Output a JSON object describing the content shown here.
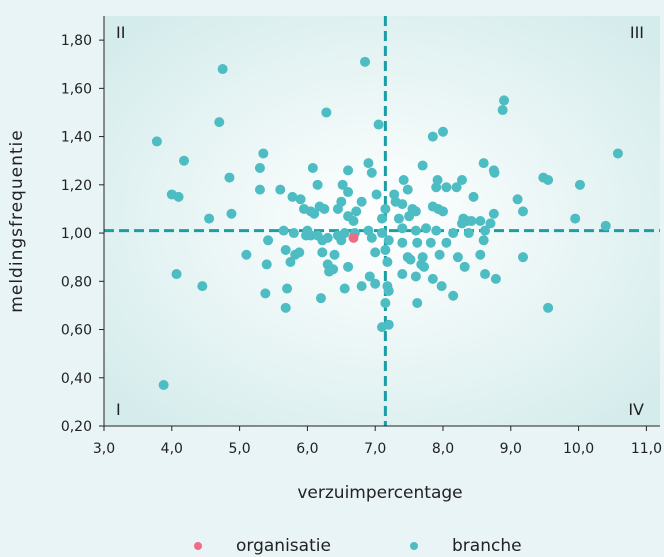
{
  "chart_data": {
    "type": "scatter",
    "xlabel": "verzuimpercentage",
    "ylabel": "meldingsfrequentie",
    "xlim": [
      3.0,
      11.0
    ],
    "ylim": [
      0.2,
      1.9
    ],
    "xticks": [
      "3,0",
      "4,0",
      "5,0",
      "6,0",
      "7,0",
      "8,0",
      "9,0",
      "10,0",
      "11,0"
    ],
    "yticks": [
      "0,20",
      "0,40",
      "0,60",
      "0,80",
      "1,00",
      "1,20",
      "1,40",
      "1,60",
      "1,80"
    ],
    "reference_lines": {
      "x": 7.15,
      "y": 1.01
    },
    "quadrant_labels": {
      "top_left": "II",
      "top_right": "III",
      "bottom_left": "I",
      "bottom_right": "IV"
    },
    "grid": false,
    "legend_position": "bottom",
    "series": [
      {
        "name": "organisatie",
        "color": "#f06b84",
        "points": [
          [
            6.68,
            0.98
          ]
        ]
      },
      {
        "name": "branche",
        "color": "#4dbcc3",
        "points": [
          [
            4.75,
            1.68
          ],
          [
            6.85,
            1.71
          ],
          [
            6.28,
            1.5
          ],
          [
            7.05,
            1.45
          ],
          [
            4.7,
            1.46
          ],
          [
            3.78,
            1.38
          ],
          [
            8.0,
            1.42
          ],
          [
            7.85,
            1.4
          ],
          [
            8.9,
            1.55
          ],
          [
            8.88,
            1.51
          ],
          [
            10.58,
            1.33
          ],
          [
            5.35,
            1.33
          ],
          [
            4.18,
            1.3
          ],
          [
            5.3,
            1.27
          ],
          [
            6.9,
            1.29
          ],
          [
            7.7,
            1.28
          ],
          [
            8.6,
            1.29
          ],
          [
            8.75,
            1.26
          ],
          [
            8.76,
            1.25
          ],
          [
            9.48,
            1.23
          ],
          [
            9.55,
            1.22
          ],
          [
            10.02,
            1.2
          ],
          [
            4.85,
            1.23
          ],
          [
            6.6,
            1.26
          ],
          [
            6.08,
            1.27
          ],
          [
            6.95,
            1.25
          ],
          [
            7.92,
            1.22
          ],
          [
            7.42,
            1.22
          ],
          [
            8.28,
            1.22
          ],
          [
            7.48,
            1.18
          ],
          [
            7.4,
            1.12
          ],
          [
            7.9,
            1.19
          ],
          [
            8.05,
            1.19
          ],
          [
            8.2,
            1.19
          ],
          [
            5.3,
            1.18
          ],
          [
            5.6,
            1.18
          ],
          [
            5.78,
            1.15
          ],
          [
            5.9,
            1.14
          ],
          [
            6.15,
            1.2
          ],
          [
            6.52,
            1.2
          ],
          [
            6.6,
            1.17
          ],
          [
            6.5,
            1.13
          ],
          [
            6.8,
            1.13
          ],
          [
            7.02,
            1.16
          ],
          [
            7.28,
            1.16
          ],
          [
            7.3,
            1.13
          ],
          [
            8.45,
            1.15
          ],
          [
            9.1,
            1.14
          ],
          [
            9.18,
            1.09
          ],
          [
            4.0,
            1.16
          ],
          [
            4.1,
            1.15
          ],
          [
            4.88,
            1.08
          ],
          [
            4.55,
            1.06
          ],
          [
            5.95,
            1.1
          ],
          [
            6.05,
            1.09
          ],
          [
            6.18,
            1.11
          ],
          [
            6.25,
            1.1
          ],
          [
            6.1,
            1.08
          ],
          [
            6.45,
            1.1
          ],
          [
            6.6,
            1.07
          ],
          [
            6.72,
            1.09
          ],
          [
            6.68,
            1.05
          ],
          [
            7.15,
            1.1
          ],
          [
            7.55,
            1.1
          ],
          [
            7.6,
            1.09
          ],
          [
            7.85,
            1.11
          ],
          [
            7.93,
            1.1
          ],
          [
            8.0,
            1.09
          ],
          [
            7.1,
            1.06
          ],
          [
            7.35,
            1.06
          ],
          [
            7.5,
            1.07
          ],
          [
            8.3,
            1.06
          ],
          [
            8.36,
            1.05
          ],
          [
            8.28,
            1.04
          ],
          [
            8.42,
            1.05
          ],
          [
            8.55,
            1.05
          ],
          [
            8.75,
            1.08
          ],
          [
            8.7,
            1.04
          ],
          [
            9.95,
            1.06
          ],
          [
            10.4,
            1.03
          ],
          [
            5.65,
            1.01
          ],
          [
            5.8,
            1.0
          ],
          [
            6.0,
            1.01
          ],
          [
            6.05,
            0.99
          ],
          [
            6.15,
            0.99
          ],
          [
            6.3,
            0.98
          ],
          [
            6.45,
            0.99
          ],
          [
            6.55,
            1.0
          ],
          [
            6.7,
            1.0
          ],
          [
            6.9,
            1.01
          ],
          [
            6.95,
            0.98
          ],
          [
            7.1,
            1.0
          ],
          [
            7.4,
            1.02
          ],
          [
            7.6,
            1.01
          ],
          [
            7.75,
            1.02
          ],
          [
            7.9,
            1.01
          ],
          [
            8.15,
            1.0
          ],
          [
            8.38,
            1.0
          ],
          [
            8.62,
            1.01
          ],
          [
            5.42,
            0.97
          ],
          [
            5.98,
            0.99
          ],
          [
            6.22,
            0.97
          ],
          [
            6.5,
            0.97
          ],
          [
            7.2,
            0.97
          ],
          [
            7.4,
            0.96
          ],
          [
            7.62,
            0.96
          ],
          [
            7.82,
            0.96
          ],
          [
            8.05,
            0.96
          ],
          [
            8.6,
            0.97
          ],
          [
            5.1,
            0.91
          ],
          [
            5.68,
            0.93
          ],
          [
            5.82,
            0.91
          ],
          [
            5.88,
            0.92
          ],
          [
            6.22,
            0.92
          ],
          [
            6.4,
            0.91
          ],
          [
            7.0,
            0.92
          ],
          [
            7.15,
            0.93
          ],
          [
            7.48,
            0.9
          ],
          [
            7.52,
            0.89
          ],
          [
            7.7,
            0.9
          ],
          [
            7.95,
            0.91
          ],
          [
            8.22,
            0.9
          ],
          [
            8.55,
            0.91
          ],
          [
            9.18,
            0.9
          ],
          [
            5.4,
            0.87
          ],
          [
            5.75,
            0.88
          ],
          [
            6.3,
            0.87
          ],
          [
            6.6,
            0.86
          ],
          [
            7.18,
            0.88
          ],
          [
            7.68,
            0.87
          ],
          [
            7.72,
            0.86
          ],
          [
            8.32,
            0.86
          ],
          [
            4.07,
            0.83
          ],
          [
            6.32,
            0.84
          ],
          [
            6.38,
            0.85
          ],
          [
            7.4,
            0.83
          ],
          [
            7.6,
            0.82
          ],
          [
            7.85,
            0.81
          ],
          [
            8.62,
            0.83
          ],
          [
            8.78,
            0.81
          ],
          [
            6.92,
            0.82
          ],
          [
            7.0,
            0.79
          ],
          [
            7.18,
            0.78
          ],
          [
            7.2,
            0.76
          ],
          [
            7.98,
            0.78
          ],
          [
            6.55,
            0.77
          ],
          [
            6.8,
            0.78
          ],
          [
            4.45,
            0.78
          ],
          [
            5.7,
            0.77
          ],
          [
            5.38,
            0.75
          ],
          [
            6.2,
            0.73
          ],
          [
            7.15,
            0.71
          ],
          [
            7.62,
            0.71
          ],
          [
            8.15,
            0.74
          ],
          [
            5.68,
            0.69
          ],
          [
            9.55,
            0.69
          ],
          [
            7.1,
            0.61
          ],
          [
            7.2,
            0.62
          ],
          [
            3.88,
            0.37
          ]
        ]
      }
    ]
  }
}
